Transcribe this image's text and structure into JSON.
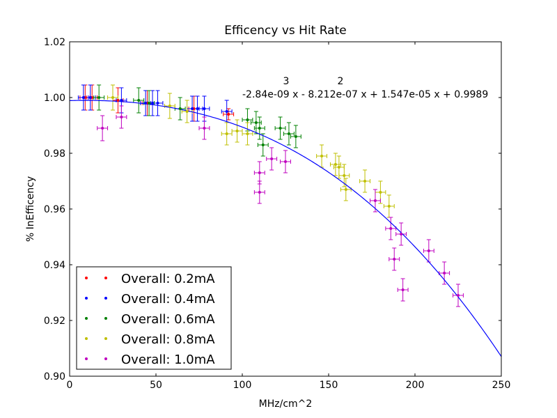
{
  "chart_data": {
    "type": "scatter",
    "title": "Efficency vs Hit Rate",
    "xlabel": "MHz/cm^2",
    "ylabel": "% InEfficency",
    "xlim": [
      0,
      250
    ],
    "ylim": [
      0.9,
      1.02
    ],
    "x_ticks": [
      "0",
      "50",
      "100",
      "150",
      "200",
      "250"
    ],
    "y_ticks": [
      "0.90",
      "0.92",
      "0.94",
      "0.96",
      "0.98",
      "1.00",
      "1.02"
    ],
    "grid": false,
    "legend_position": "lower-left",
    "fit": {
      "color": "#0000ff",
      "coefficients": [
        -2.84e-09,
        -8.212e-07,
        1.547e-05,
        0.9989
      ],
      "exponent_3": "3",
      "exponent_2": "2",
      "equation": "-2.84e-09 x - 8.212e-07 x + 1.547e-05 x + 0.9989"
    },
    "series": [
      {
        "name": "Overall: 0.2mA",
        "color": "#ff0000",
        "points": [
          {
            "x": 9,
            "y": 1.0,
            "ex": 3,
            "ey": 0.0045
          },
          {
            "x": 13,
            "y": 1.0,
            "ex": 3,
            "ey": 0.0045
          },
          {
            "x": 28,
            "y": 0.999,
            "ex": 3,
            "ey": 0.0045
          },
          {
            "x": 45,
            "y": 0.998,
            "ex": 3,
            "ey": 0.0045
          },
          {
            "x": 72,
            "y": 0.996,
            "ex": 3,
            "ey": 0.0045
          },
          {
            "x": 92,
            "y": 0.994,
            "ex": 3,
            "ey": 0.002
          }
        ]
      },
      {
        "name": "Overall: 0.4mA",
        "color": "#0000ff",
        "points": [
          {
            "x": 8,
            "y": 1.0,
            "ex": 3,
            "ey": 0.0045
          },
          {
            "x": 12,
            "y": 1.0,
            "ex": 3,
            "ey": 0.0045
          },
          {
            "x": 30,
            "y": 0.999,
            "ex": 3,
            "ey": 0.0045
          },
          {
            "x": 44,
            "y": 0.998,
            "ex": 3,
            "ey": 0.0045
          },
          {
            "x": 48,
            "y": 0.998,
            "ex": 3,
            "ey": 0.0045
          },
          {
            "x": 51,
            "y": 0.998,
            "ex": 3,
            "ey": 0.0045
          },
          {
            "x": 71,
            "y": 0.996,
            "ex": 3,
            "ey": 0.0045
          },
          {
            "x": 74,
            "y": 0.996,
            "ex": 3,
            "ey": 0.0045
          },
          {
            "x": 78,
            "y": 0.996,
            "ex": 3,
            "ey": 0.0045
          },
          {
            "x": 91,
            "y": 0.995,
            "ex": 3,
            "ey": 0.004
          }
        ]
      },
      {
        "name": "Overall: 0.6mA",
        "color": "#008000",
        "points": [
          {
            "x": 17,
            "y": 1.0,
            "ex": 3,
            "ey": 0.0045
          },
          {
            "x": 40,
            "y": 0.999,
            "ex": 3,
            "ey": 0.0045
          },
          {
            "x": 46,
            "y": 0.998,
            "ex": 3,
            "ey": 0.0045
          },
          {
            "x": 64,
            "y": 0.996,
            "ex": 3,
            "ey": 0.004
          },
          {
            "x": 103,
            "y": 0.992,
            "ex": 3,
            "ey": 0.004
          },
          {
            "x": 108,
            "y": 0.991,
            "ex": 3,
            "ey": 0.004
          },
          {
            "x": 110,
            "y": 0.989,
            "ex": 3,
            "ey": 0.004
          },
          {
            "x": 112,
            "y": 0.983,
            "ex": 3,
            "ey": 0.004
          },
          {
            "x": 122,
            "y": 0.989,
            "ex": 3,
            "ey": 0.004
          },
          {
            "x": 127,
            "y": 0.987,
            "ex": 3,
            "ey": 0.004
          },
          {
            "x": 131,
            "y": 0.986,
            "ex": 3,
            "ey": 0.004
          }
        ]
      },
      {
        "name": "Overall: 0.8mA",
        "color": "#bfbf00",
        "points": [
          {
            "x": 25,
            "y": 1.0,
            "ex": 3,
            "ey": 0.0045
          },
          {
            "x": 58,
            "y": 0.997,
            "ex": 3,
            "ey": 0.0045
          },
          {
            "x": 68,
            "y": 0.995,
            "ex": 3,
            "ey": 0.004
          },
          {
            "x": 91,
            "y": 0.987,
            "ex": 3,
            "ey": 0.004
          },
          {
            "x": 97,
            "y": 0.988,
            "ex": 3,
            "ey": 0.004
          },
          {
            "x": 103,
            "y": 0.987,
            "ex": 3,
            "ey": 0.004
          },
          {
            "x": 146,
            "y": 0.979,
            "ex": 3,
            "ey": 0.004
          },
          {
            "x": 154,
            "y": 0.976,
            "ex": 3,
            "ey": 0.004
          },
          {
            "x": 156,
            "y": 0.975,
            "ex": 3,
            "ey": 0.004
          },
          {
            "x": 159,
            "y": 0.972,
            "ex": 3,
            "ey": 0.004
          },
          {
            "x": 160,
            "y": 0.967,
            "ex": 3,
            "ey": 0.004
          },
          {
            "x": 171,
            "y": 0.97,
            "ex": 3,
            "ey": 0.004
          },
          {
            "x": 180,
            "y": 0.966,
            "ex": 3,
            "ey": 0.004
          },
          {
            "x": 185,
            "y": 0.961,
            "ex": 3,
            "ey": 0.004
          }
        ]
      },
      {
        "name": "Overall: 1.0mA",
        "color": "#bf00bf",
        "points": [
          {
            "x": 19,
            "y": 0.989,
            "ex": 3,
            "ey": 0.0045
          },
          {
            "x": 30,
            "y": 0.993,
            "ex": 3,
            "ey": 0.004
          },
          {
            "x": 78,
            "y": 0.989,
            "ex": 3,
            "ey": 0.004
          },
          {
            "x": 110,
            "y": 0.973,
            "ex": 3,
            "ey": 0.004
          },
          {
            "x": 110,
            "y": 0.966,
            "ex": 3,
            "ey": 0.004
          },
          {
            "x": 117,
            "y": 0.978,
            "ex": 3,
            "ey": 0.004
          },
          {
            "x": 125,
            "y": 0.977,
            "ex": 3,
            "ey": 0.004
          },
          {
            "x": 177,
            "y": 0.963,
            "ex": 3,
            "ey": 0.004
          },
          {
            "x": 186,
            "y": 0.953,
            "ex": 3,
            "ey": 0.004
          },
          {
            "x": 188,
            "y": 0.942,
            "ex": 3,
            "ey": 0.004
          },
          {
            "x": 192,
            "y": 0.951,
            "ex": 3,
            "ey": 0.004
          },
          {
            "x": 193,
            "y": 0.931,
            "ex": 3,
            "ey": 0.004
          },
          {
            "x": 208,
            "y": 0.945,
            "ex": 3,
            "ey": 0.004
          },
          {
            "x": 217,
            "y": 0.937,
            "ex": 3,
            "ey": 0.004
          },
          {
            "x": 225,
            "y": 0.929,
            "ex": 3,
            "ey": 0.004
          }
        ]
      }
    ]
  }
}
